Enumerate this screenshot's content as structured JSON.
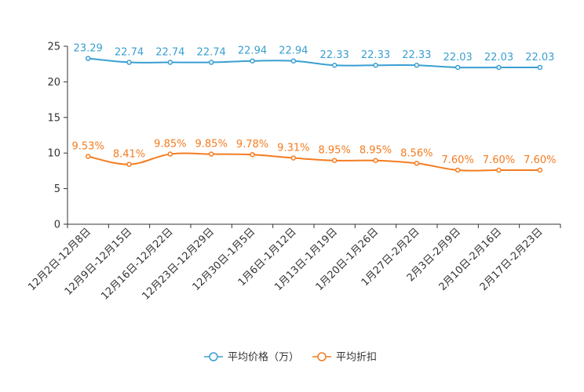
{
  "chart_data": {
    "type": "line",
    "categories": [
      "12月2日-12月8日",
      "12月9日-12月15日",
      "12月16日-12月22日",
      "12月23日-12月29日",
      "12月30日-1月5日",
      "1月6日-1月12日",
      "1月13日-1月19日",
      "1月20日-1月26日",
      "1月27日-2月2日",
      "2月3日-2月9日",
      "2月10日-2月16日",
      "2月17日-2月23日"
    ],
    "ylim": [
      0,
      25
    ],
    "yticks": [
      0,
      5,
      10,
      15,
      20,
      25
    ],
    "series": [
      {
        "name": "平均价格（万）",
        "color": "#3a9fd1",
        "values": [
          23.29,
          22.74,
          22.74,
          22.74,
          22.94,
          22.94,
          22.33,
          22.33,
          22.33,
          22.03,
          22.03,
          22.03
        ],
        "labels": [
          "23.29",
          "22.74",
          "22.74",
          "22.74",
          "22.94",
          "22.94",
          "22.33",
          "22.33",
          "22.33",
          "22.03",
          "22.03",
          "22.03"
        ]
      },
      {
        "name": "平均折扣",
        "color": "#f47c20",
        "values": [
          9.53,
          8.41,
          9.85,
          9.85,
          9.78,
          9.31,
          8.95,
          8.95,
          8.56,
          7.6,
          7.6,
          7.6
        ],
        "labels": [
          "9.53%",
          "8.41%",
          "9.85%",
          "9.85%",
          "9.78%",
          "9.31%",
          "8.95%",
          "8.95%",
          "8.56%",
          "7.60%",
          "7.60%",
          "7.60%"
        ]
      }
    ],
    "legend_position": "bottom-center"
  }
}
